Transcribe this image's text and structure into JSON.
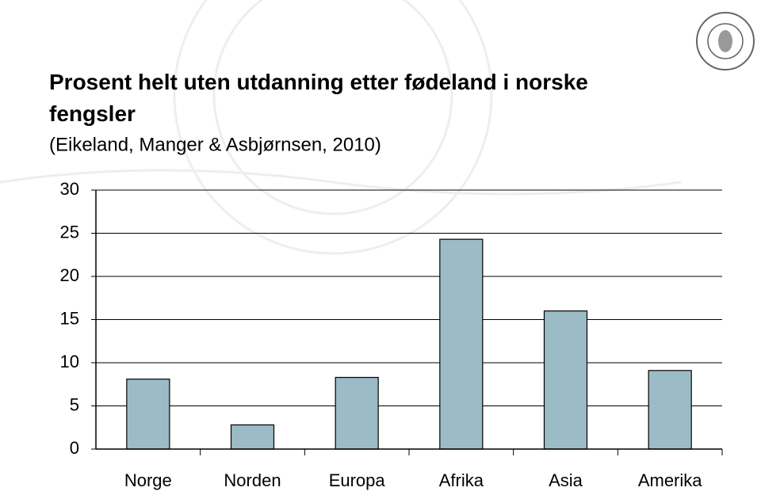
{
  "chart_data": {
    "type": "bar",
    "title": "Prosent helt uten utdanning etter fødeland i norske fengsler",
    "subtitle": "(Eikeland, Manger & Asbjørnsen, 2010)",
    "categories": [
      "Norge",
      "Norden",
      "Europa",
      "Afrika",
      "Asia",
      "Amerika"
    ],
    "values": [
      8.1,
      2.8,
      8.3,
      24.3,
      16,
      9.1
    ],
    "color": "#9bbbc7",
    "ylim": [
      0,
      30
    ],
    "yticks": [
      0,
      5,
      10,
      15,
      20,
      25,
      30
    ],
    "grid": true
  }
}
